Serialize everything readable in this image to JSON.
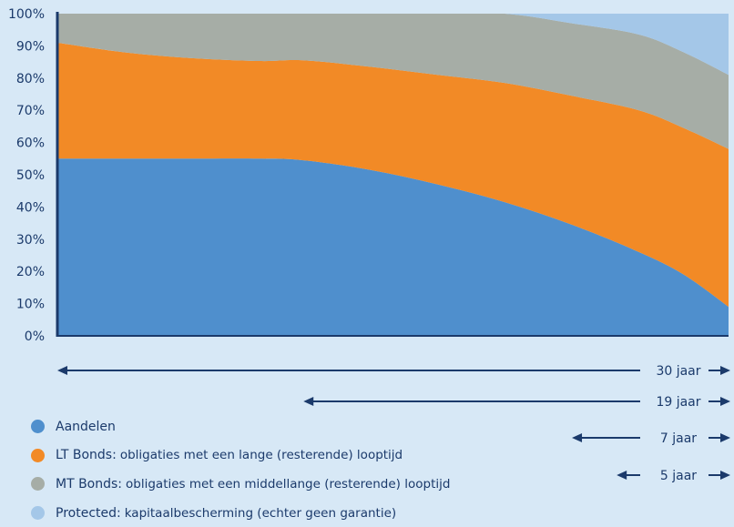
{
  "chart_data": {
    "type": "area",
    "stacked": true,
    "ylim": [
      0,
      100
    ],
    "y_ticks": [
      "0%",
      "10%",
      "20%",
      "30%",
      "40%",
      "50%",
      "60%",
      "70%",
      "80%",
      "90%",
      "100%"
    ],
    "x": [
      0,
      3,
      6,
      9,
      11,
      14,
      17,
      20,
      23,
      26,
      28,
      30
    ],
    "series": [
      {
        "name": "Aandelen",
        "color": "#4f8fcd",
        "values": [
          55,
          55,
          55,
          55,
          54.5,
          51.5,
          47,
          41.5,
          34.5,
          26,
          19,
          9
        ]
      },
      {
        "name": "LT Bonds",
        "color": "#f28a26",
        "values": [
          36,
          33,
          31.2,
          30.3,
          31,
          32,
          34,
          37,
          40,
          44,
          45.5,
          49
        ]
      },
      {
        "name": "MT Bonds",
        "color": "#a6ada6",
        "values": [
          9,
          12,
          13.8,
          14.7,
          14.5,
          16.5,
          19,
          21.5,
          22.5,
          23.5,
          23.5,
          23
        ]
      },
      {
        "name": "Protected",
        "color": "#a4c7e8",
        "values": [
          0,
          0,
          0,
          0,
          0,
          0,
          0,
          0,
          3,
          6.5,
          12,
          19
        ]
      }
    ],
    "spans": [
      {
        "label": "30 jaar",
        "years": 30
      },
      {
        "label": "19 jaar",
        "years": 19
      },
      {
        "label": "7 jaar",
        "years": 7
      },
      {
        "label": "5 jaar",
        "years": 5
      }
    ],
    "legend": [
      {
        "name": "Aandelen",
        "description": "",
        "color": "#4f8fcd"
      },
      {
        "name": "LT Bonds:",
        "description": "obligaties met een lange (resterende) looptijd",
        "color": "#f28a26"
      },
      {
        "name": "MT Bonds:",
        "description": "obligaties met een middellange (resterende) looptijd",
        "color": "#a6ada6"
      },
      {
        "name": "Protected:",
        "description": "kapitaalbescherming (echter geen garantie)",
        "color": "#a4c7e8"
      }
    ]
  }
}
